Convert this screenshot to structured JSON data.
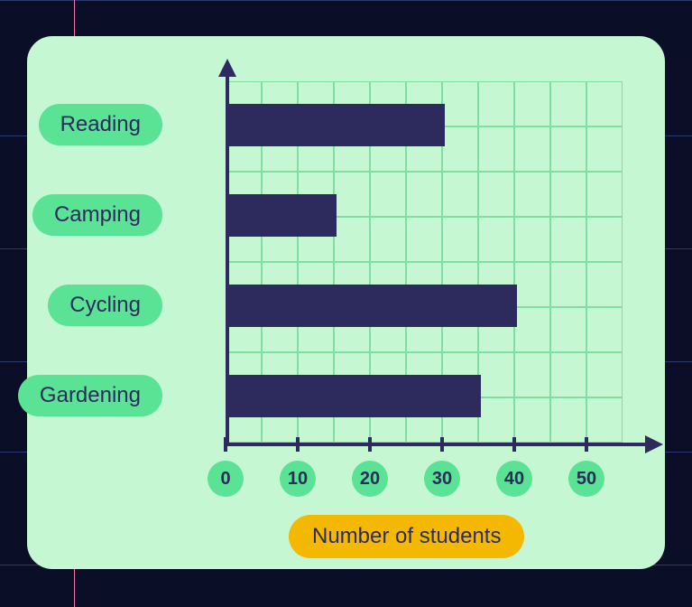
{
  "chart": {
    "type": "bar-horizontal",
    "background_color": "#c6f7d3",
    "grid_color": "#7de0a0",
    "axis_color": "#2d2a5e",
    "bar_color": "#2d2a5e",
    "pill_color": "#5ae295",
    "tick_circle_color": "#5ae295",
    "xtitle_bg_color": "#f5b800",
    "text_color": "#2d2a5e",
    "category_fontsize": 24,
    "tick_fontsize": 20,
    "title_fontsize": 24,
    "xlim": [
      0,
      55
    ],
    "xtick_step": 10,
    "xticks": [
      {
        "value": 0,
        "label": "0"
      },
      {
        "value": 10,
        "label": "10"
      },
      {
        "value": 20,
        "label": "20"
      },
      {
        "value": 30,
        "label": "30"
      },
      {
        "value": 40,
        "label": "40"
      },
      {
        "value": 50,
        "label": "50"
      }
    ],
    "grid_cols": 11,
    "grid_rows": 8,
    "categories": [
      {
        "label": "Reading",
        "value": 30
      },
      {
        "label": "Camping",
        "value": 15
      },
      {
        "label": "Cycling",
        "value": 40
      },
      {
        "label": "Gardening",
        "value": 35
      }
    ],
    "x_title": "Number of students"
  },
  "page_bg": {
    "color": "#0a0e27",
    "h_lines": [
      0,
      150,
      275,
      400,
      500,
      625
    ],
    "v_line_x": 82,
    "h_line_color": "#2e3a6b",
    "v_line_color": "#ec7d9e"
  }
}
